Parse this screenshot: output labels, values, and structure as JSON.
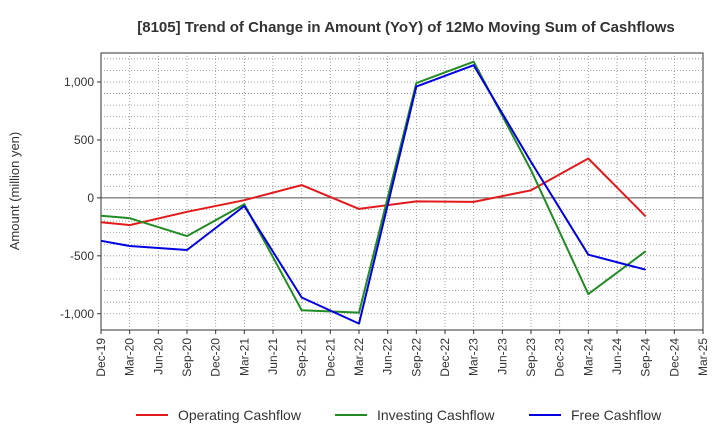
{
  "chart_data": {
    "type": "line",
    "title": "[8105]  Trend of Change in Amount (YoY) of 12Mo Moving Sum of Cashflows",
    "xlabel": "",
    "ylabel": "Amount (million yen)",
    "ylim": [
      -1140,
      1250
    ],
    "yticks": [
      -1000,
      -500,
      0,
      500,
      1000
    ],
    "ytick_labels": [
      "-1,000",
      "-500",
      "0",
      "500",
      "1,000"
    ],
    "categories": [
      "Dec-19",
      "Mar-20",
      "Jun-20",
      "Sep-20",
      "Dec-20",
      "Mar-21",
      "Jun-21",
      "Sep-21",
      "Dec-21",
      "Mar-22",
      "Jun-22",
      "Sep-22",
      "Dec-22",
      "Mar-23",
      "Jun-23",
      "Sep-23",
      "Dec-23",
      "Mar-24",
      "Jun-24",
      "Sep-24",
      "Dec-24",
      "Mar-25"
    ],
    "grid": true,
    "legend_position": "bottom",
    "series": [
      {
        "name": "Operating Cashflow",
        "color": "#e31a1c",
        "values": [
          -210,
          -235,
          null,
          -120,
          null,
          -20,
          null,
          110,
          null,
          -95,
          null,
          -30,
          null,
          -35,
          null,
          65,
          null,
          340,
          null,
          -160,
          null,
          null
        ]
      },
      {
        "name": "Investing Cashflow",
        "color": "#238b23",
        "values": [
          -155,
          -175,
          null,
          -330,
          null,
          -55,
          null,
          -970,
          null,
          -990,
          null,
          990,
          null,
          1175,
          null,
          240,
          null,
          -830,
          null,
          -460,
          null,
          null
        ]
      },
      {
        "name": "Free Cashflow",
        "color": "#0000e0",
        "values": [
          -370,
          -415,
          null,
          -450,
          null,
          -70,
          null,
          -860,
          null,
          -1085,
          null,
          960,
          null,
          1145,
          null,
          310,
          null,
          -490,
          null,
          -620,
          null,
          null
        ]
      }
    ]
  }
}
